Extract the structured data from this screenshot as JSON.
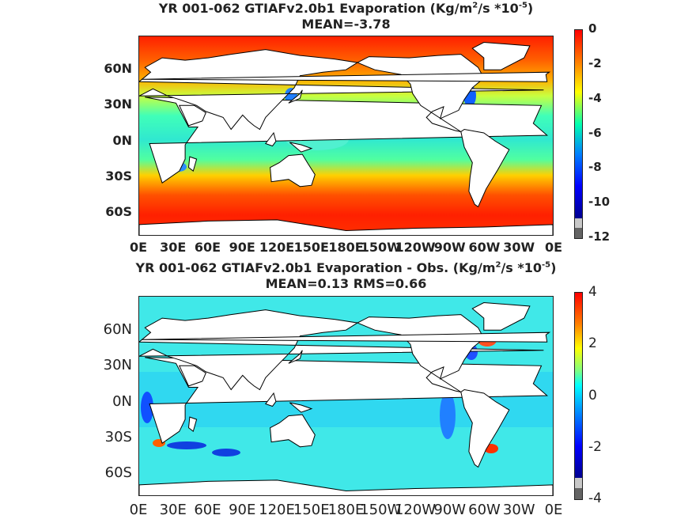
{
  "chart_data": [
    {
      "type": "heatmap",
      "title_part1": "YR 001-062 GTIAFv2.0b1  Evaporation (Kg/m",
      "title_sup1": "2",
      "title_part2": "/s *10",
      "title_sup2": "-5",
      "title_part3": ")",
      "subtitle": "MEAN=-3.78",
      "y_ticks": [
        "60N",
        "30N",
        "0N",
        "30S",
        "60S"
      ],
      "x_ticks": [
        "0E",
        "30E",
        "60E",
        "90E",
        "120E",
        "150E",
        "180E",
        "150W",
        "120W",
        "90W",
        "60W",
        "30W",
        "0E"
      ],
      "colorbar_ticks": [
        "0",
        "-2",
        "-4",
        "-6",
        "-8",
        "-10",
        "-12"
      ],
      "colorbar_range": [
        -12,
        0
      ],
      "zonal_mean_profile": [
        {
          "lat": 80,
          "value": -0.5
        },
        {
          "lat": 60,
          "value": -1.5
        },
        {
          "lat": 40,
          "value": -3.0
        },
        {
          "lat": 20,
          "value": -5.0
        },
        {
          "lat": 0,
          "value": -5.5
        },
        {
          "lat": -20,
          "value": -5.5
        },
        {
          "lat": -40,
          "value": -2.5
        },
        {
          "lat": -60,
          "value": -1.0
        },
        {
          "lat": -75,
          "value": -0.5
        }
      ]
    },
    {
      "type": "heatmap",
      "title_part1": "YR 001-062 GTIAFv2.0b1 Evaporation - Obs. (Kg/m",
      "title_sup1": "2",
      "title_part2": "/s *10",
      "title_sup2": "-5",
      "title_part3": ")",
      "subtitle": "MEAN=0.13   RMS=0.66",
      "y_ticks": [
        "60N",
        "30N",
        "0N",
        "30S",
        "60S"
      ],
      "x_ticks": [
        "0E",
        "30E",
        "60E",
        "90E",
        "120E",
        "150E",
        "180E",
        "150W",
        "120W",
        "90W",
        "60W",
        "30W",
        "0E"
      ],
      "colorbar_ticks": [
        "4",
        "2",
        "0",
        "-2",
        "-4"
      ],
      "colorbar_range": [
        -4,
        4
      ],
      "mean": 0.13,
      "rms": 0.66
    }
  ],
  "colors": {
    "colormap_jet": [
      "#7f0000",
      "#ff0000",
      "#ff7f00",
      "#ffff00",
      "#7fff7f",
      "#00ffff",
      "#007fff",
      "#0000ff",
      "#00007f"
    ],
    "below_range": [
      "#c8c8c8",
      "#646464"
    ],
    "land": "#ffffff",
    "coast": "#000000"
  }
}
